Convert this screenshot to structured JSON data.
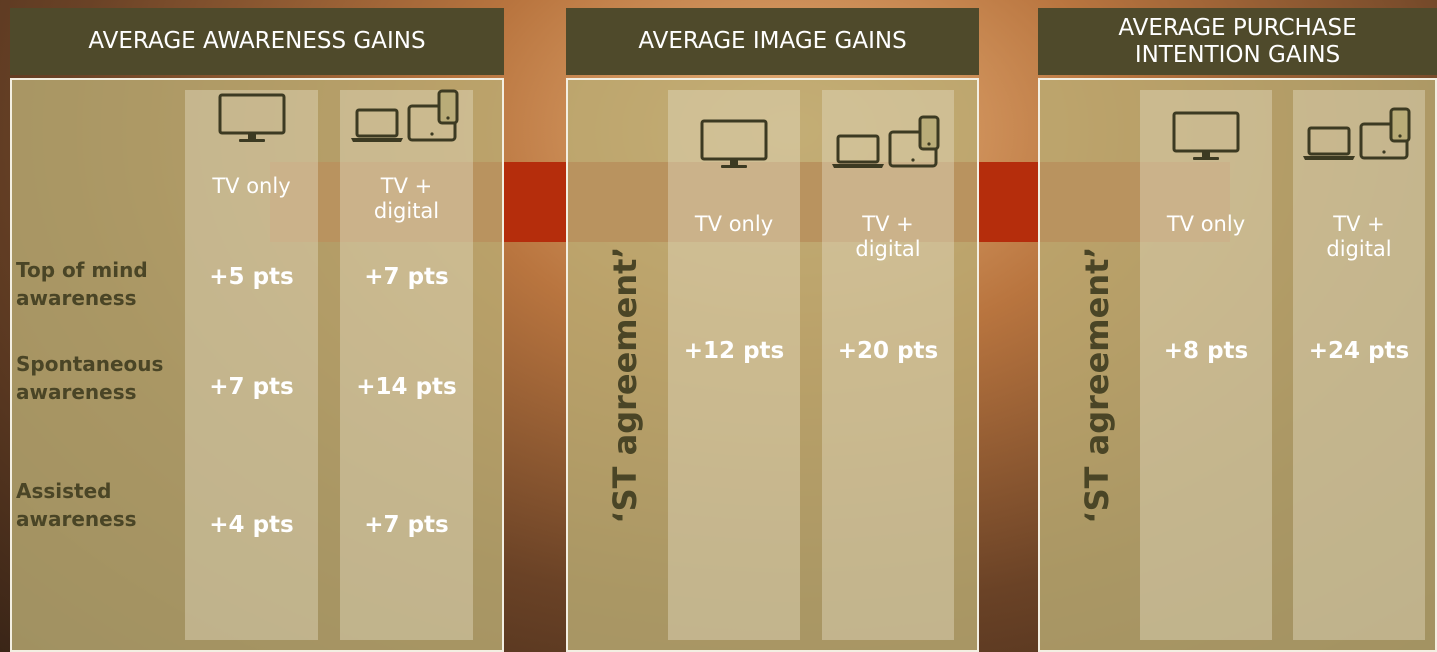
{
  "panels": [
    {
      "title": "AVERAGE AWARENESS GAINS",
      "columns": [
        "TV only",
        "TV + digital"
      ],
      "rows": [
        {
          "label": "Top of mind awareness",
          "cells": [
            "+5 pts",
            "+7 pts"
          ]
        },
        {
          "label": "Spontaneous awareness",
          "cells": [
            "+7 pts",
            "+14 pts"
          ]
        },
        {
          "label": "Assisted awareness",
          "cells": [
            "+4 pts",
            "+7 pts"
          ]
        }
      ]
    },
    {
      "title": "AVERAGE IMAGE GAINS",
      "side_label": "‘ST agreement’",
      "columns": [
        "TV only",
        "TV + digital"
      ],
      "rows": [
        {
          "cells": [
            "+12 pts",
            "+20 pts"
          ]
        }
      ]
    },
    {
      "title": "AVERAGE PURCHASE INTENTION GAINS",
      "side_label": "‘ST agreement’",
      "columns": [
        "TV only",
        "TV + digital"
      ],
      "rows": [
        {
          "cells": [
            "+8 pts",
            "+24 pts"
          ]
        }
      ]
    }
  ]
}
